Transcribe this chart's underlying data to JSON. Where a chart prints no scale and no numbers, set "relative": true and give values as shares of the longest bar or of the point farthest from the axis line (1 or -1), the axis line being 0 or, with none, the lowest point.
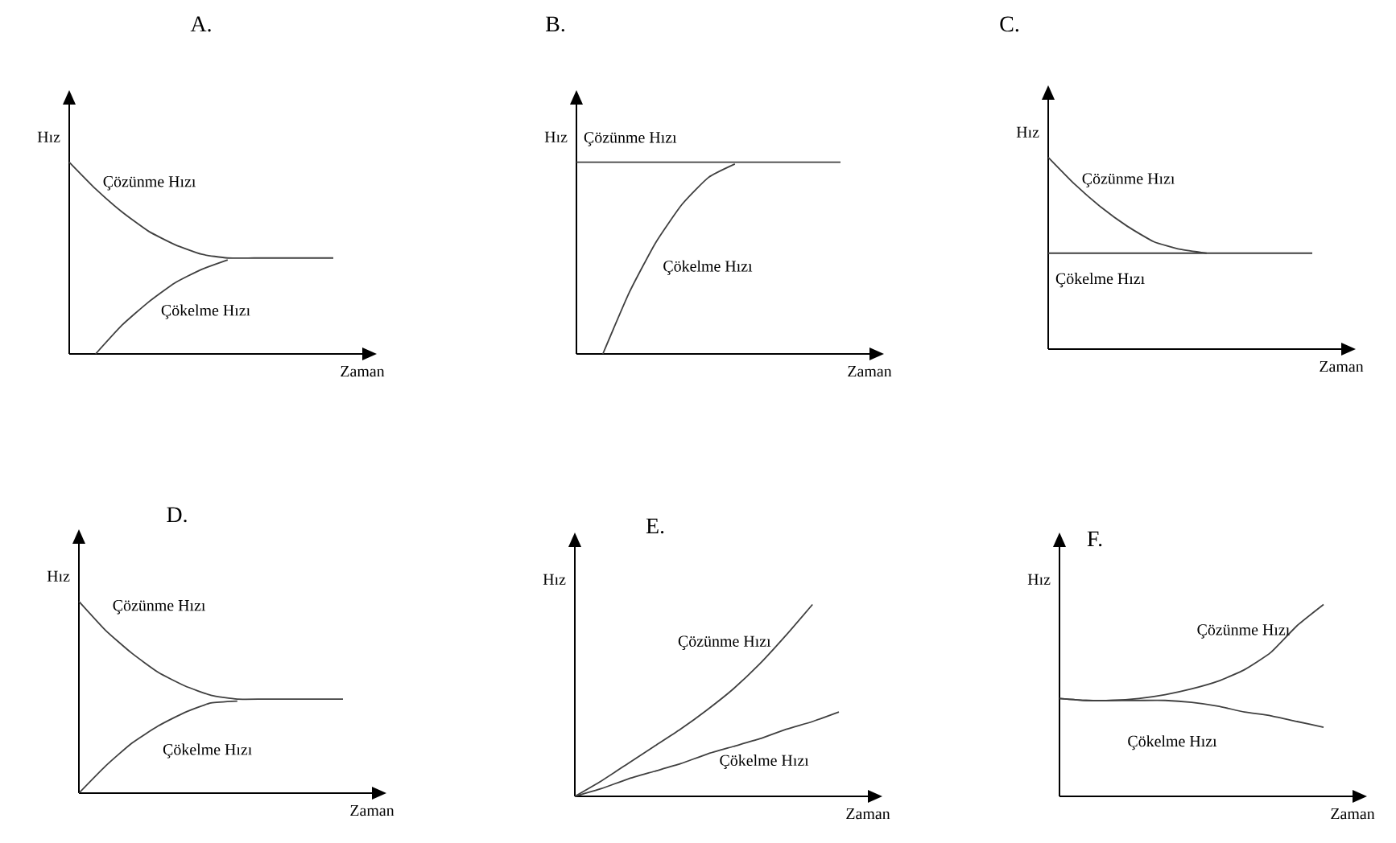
{
  "chart_data": [
    {
      "type": "line",
      "title": "A.",
      "xlabel": "Zaman",
      "ylabel": "Hız",
      "relative": true,
      "categories": [
        null,
        null,
        null,
        null,
        null,
        null,
        null,
        null,
        null,
        null,
        null
      ],
      "series": [
        {
          "name": "Çözünme Hızı",
          "color": "#404040",
          "values": [
            1,
            0.86,
            0.74,
            0.64,
            0.57,
            0.52,
            0.5,
            0.5,
            0.5,
            0.5,
            0.5
          ]
        },
        {
          "name": "Çökelme Hızı",
          "color": "#404040",
          "values": [
            null,
            0,
            0.15,
            0.27,
            0.37,
            0.44,
            0.49,
            null,
            null,
            null,
            null
          ]
        }
      ]
    },
    {
      "type": "line",
      "title": "B.",
      "xlabel": "Zaman",
      "ylabel": "Hız",
      "relative": true,
      "categories": [
        null,
        null,
        null,
        null,
        null,
        null,
        null,
        null,
        null,
        null,
        null
      ],
      "series": [
        {
          "name": "Çözünme Hızı",
          "color": "#404040",
          "values": [
            1,
            1,
            1,
            1,
            1,
            1,
            1,
            1,
            1,
            1,
            1
          ]
        },
        {
          "name": "Çökelme Hızı",
          "color": "#404040",
          "values": [
            null,
            0,
            0.32,
            0.58,
            0.78,
            0.92,
            0.99,
            null,
            null,
            null,
            null
          ]
        }
      ]
    },
    {
      "type": "line",
      "title": "C.",
      "xlabel": "Zaman",
      "ylabel": "Hız",
      "relative": true,
      "categories": [
        null,
        null,
        null,
        null,
        null,
        null,
        null,
        null,
        null,
        null,
        null
      ],
      "series": [
        {
          "name": "Çözünme Hızı",
          "color": "#404040",
          "values": [
            1,
            0.86,
            0.74,
            0.64,
            0.56,
            0.52,
            0.5,
            null,
            null,
            null,
            null
          ]
        },
        {
          "name": "Çökelme Hızı",
          "color": "#404040",
          "values": [
            0.5,
            0.5,
            0.5,
            0.5,
            0.5,
            0.5,
            0.5,
            0.5,
            0.5,
            0.5,
            0.5
          ]
        }
      ]
    },
    {
      "type": "line",
      "title": "D.",
      "xlabel": "Zaman",
      "ylabel": "Hız",
      "relative": true,
      "categories": [
        null,
        null,
        null,
        null,
        null,
        null,
        null,
        null,
        null,
        null,
        null
      ],
      "series": [
        {
          "name": "Çözünme Hızı",
          "color": "#404040",
          "values": [
            1,
            0.85,
            0.73,
            0.63,
            0.56,
            0.51,
            0.49,
            0.49,
            0.49,
            0.49,
            0.49
          ]
        },
        {
          "name": "Çökelme Hızı",
          "color": "#404040",
          "values": [
            0,
            0.14,
            0.26,
            0.35,
            0.42,
            0.47,
            0.48,
            null,
            null,
            null,
            null
          ]
        }
      ]
    },
    {
      "type": "line",
      "title": "E.",
      "xlabel": "Zaman",
      "ylabel": "Hız",
      "relative": true,
      "categories": [
        null,
        null,
        null,
        null,
        null,
        null,
        null,
        null,
        null,
        null,
        null
      ],
      "series": [
        {
          "name": "Çözünme Hızı",
          "color": "#404040",
          "values": [
            0,
            0.08,
            0.17,
            0.26,
            0.35,
            0.45,
            0.56,
            0.69,
            0.84,
            1,
            null
          ]
        },
        {
          "name": "Çökelme Hızı",
          "color": "#404040",
          "values": [
            0,
            0.04,
            0.09,
            0.13,
            0.17,
            0.22,
            0.26,
            0.3,
            0.35,
            0.39,
            0.44
          ]
        }
      ]
    },
    {
      "type": "line",
      "title": "F.",
      "xlabel": "Zaman",
      "ylabel": "Hız",
      "relative": true,
      "categories": [
        null,
        null,
        null,
        null,
        null,
        null,
        null,
        null,
        null,
        null,
        null
      ],
      "series": [
        {
          "name": "Çözünme Hızı",
          "color": "#404040",
          "values": [
            0.51,
            0.5,
            0.5,
            0.51,
            0.53,
            0.56,
            0.6,
            0.66,
            0.75,
            0.89,
            1
          ]
        },
        {
          "name": "Çökelme Hızı",
          "color": "#404040",
          "values": [
            0.51,
            0.5,
            0.5,
            0.5,
            0.5,
            0.49,
            0.47,
            0.44,
            0.42,
            0.39,
            0.36
          ]
        }
      ]
    }
  ]
}
